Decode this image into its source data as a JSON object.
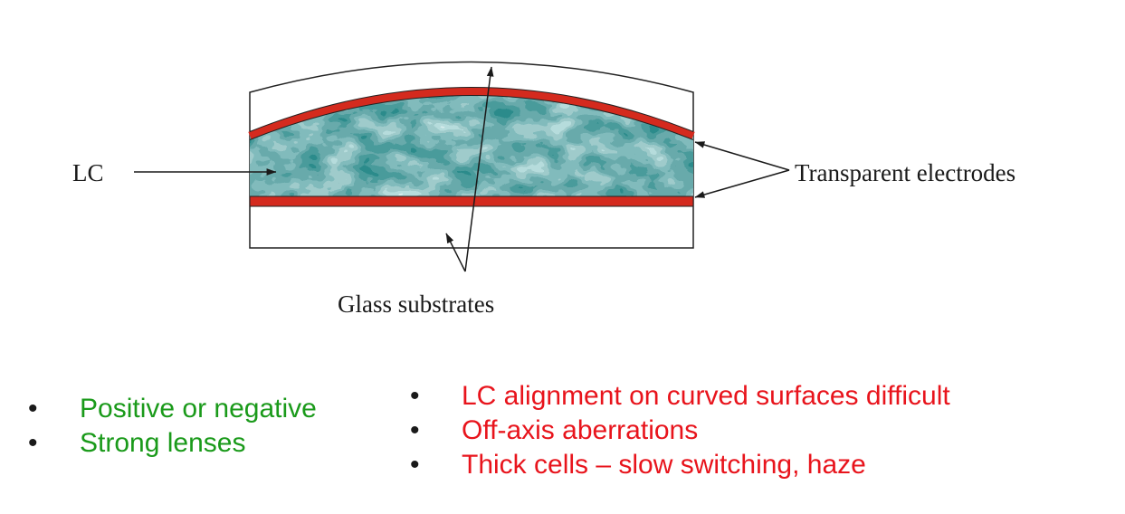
{
  "diagram": {
    "labels": {
      "lc": "LC",
      "electrodes": "Transparent electrodes",
      "substrates": "Glass substrates"
    },
    "colors": {
      "electrode": "#d42a1e",
      "lc_dark": "#1a7f80",
      "lc_light": "#d6ecec",
      "outline": "#222222"
    }
  },
  "advantages": {
    "color": "#1a9a1a",
    "items": [
      "Positive or negative",
      "Strong lenses"
    ]
  },
  "disadvantages": {
    "color": "#e8141c",
    "items": [
      "LC alignment on curved surfaces difficult",
      "Off-axis aberrations",
      "Thick cells – slow switching, haze"
    ]
  }
}
